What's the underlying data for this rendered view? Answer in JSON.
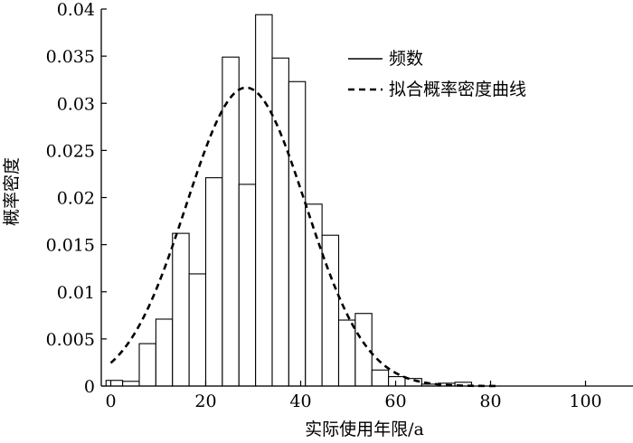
{
  "chart_data": {
    "type": "bar",
    "xlabel": "实际使用年限/a",
    "ylabel": "概率密度",
    "xlim": [
      -2,
      110
    ],
    "ylim": [
      0,
      0.04
    ],
    "xticks": [
      0,
      20,
      40,
      60,
      80,
      100
    ],
    "yticks": [
      0,
      0.005,
      0.01,
      0.015,
      0.02,
      0.025,
      0.03,
      0.035,
      0.04
    ],
    "ytick_labels": [
      "0",
      "0.005",
      "0.01",
      "0.015",
      "0.02",
      "0.025",
      "0.03",
      "0.035",
      "0.04"
    ],
    "bin_width": 3.5,
    "histogram": {
      "name": "频数",
      "bin_starts": [
        -1,
        2.5,
        6,
        9.5,
        13,
        16.5,
        20,
        23.5,
        27,
        30.5,
        34,
        37.5,
        41,
        44.5,
        48,
        51.5,
        55,
        58.5,
        62,
        65.5,
        69,
        72.5
      ],
      "values": [
        0.0006,
        0.0005,
        0.0045,
        0.0071,
        0.0162,
        0.0119,
        0.0221,
        0.0349,
        0.0214,
        0.0394,
        0.0348,
        0.0323,
        0.0193,
        0.016,
        0.007,
        0.0077,
        0.0017,
        0.001,
        0.0008,
        0.0002,
        0.0003,
        0.0004
      ]
    },
    "fit_curve": {
      "name": "拟合概率密度曲线",
      "distribution": "normal",
      "mean": 28.5,
      "sd": 12.6
    },
    "legend_position": "top-right",
    "grid": false
  }
}
